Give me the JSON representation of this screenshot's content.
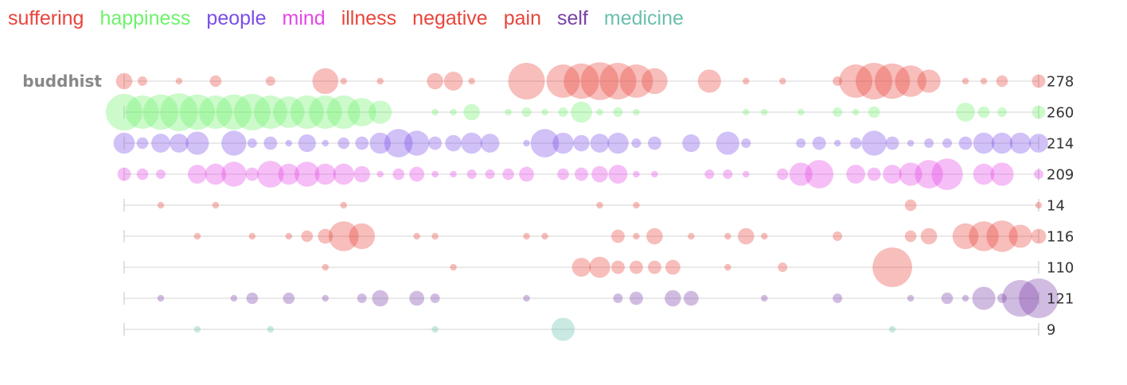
{
  "legend": [
    {
      "label": "suffering",
      "color": "#e8453c"
    },
    {
      "label": "happiness",
      "color": "#6ef26b"
    },
    {
      "label": "people",
      "color": "#7b4de8"
    },
    {
      "label": "mind",
      "color": "#e546e5"
    },
    {
      "label": "illness",
      "color": "#e8453c"
    },
    {
      "label": "negative",
      "color": "#e8453c"
    },
    {
      "label": "pain",
      "color": "#e8453c"
    },
    {
      "label": "self",
      "color": "#7a3fa8"
    },
    {
      "label": "medicine",
      "color": "#6bbfae"
    }
  ],
  "chart_data": {
    "type": "scatter",
    "grid": false,
    "legend_placement": "top-left",
    "row_label": "buddhist",
    "x": [
      0,
      1,
      2,
      3,
      4,
      5,
      6,
      7,
      8,
      9,
      10,
      11,
      12,
      13,
      14,
      15,
      16,
      17,
      18,
      19,
      20,
      21,
      22,
      23,
      24,
      25,
      26,
      27,
      28,
      29,
      30,
      31,
      32,
      33,
      34,
      35,
      36,
      37,
      38,
      39,
      40,
      41,
      42,
      43,
      44,
      45,
      46,
      47,
      48,
      49,
      50
    ],
    "series": [
      {
        "name": "suffering",
        "total": "278",
        "color": "#e8453c",
        "values": [
          6,
          2,
          0,
          1,
          0,
          3,
          0,
          0,
          2,
          0,
          0,
          15,
          1,
          0,
          1,
          0,
          0,
          6,
          8,
          1,
          0,
          0,
          30,
          0,
          25,
          28,
          32,
          30,
          25,
          15,
          0,
          0,
          12,
          0,
          1,
          0,
          1,
          0,
          0,
          2,
          25,
          30,
          28,
          22,
          12,
          0,
          1,
          1,
          3,
          0,
          4
        ]
      },
      {
        "name": "happiness",
        "total": "260",
        "color": "#6ef26b",
        "values": [
          30,
          25,
          28,
          32,
          28,
          25,
          28,
          30,
          25,
          22,
          25,
          25,
          25,
          18,
          12,
          0,
          0,
          1,
          1,
          6,
          0,
          1,
          2,
          1,
          2,
          10,
          1,
          2,
          1,
          0,
          0,
          0,
          0,
          0,
          1,
          1,
          0,
          1,
          0,
          2,
          1,
          3,
          0,
          0,
          0,
          0,
          8,
          3,
          2,
          0,
          4
        ]
      },
      {
        "name": "people",
        "total": "214",
        "color": "#7b4de8",
        "values": [
          10,
          3,
          8,
          8,
          12,
          0,
          14,
          2,
          4,
          1,
          7,
          1,
          3,
          4,
          10,
          18,
          14,
          4,
          6,
          10,
          8,
          0,
          1,
          18,
          10,
          6,
          8,
          10,
          2,
          4,
          0,
          7,
          0,
          12,
          2,
          0,
          0,
          2,
          4,
          1,
          3,
          14,
          4,
          1,
          2,
          2,
          4,
          10,
          10,
          10,
          8
        ]
      },
      {
        "name": "mind",
        "total": "209",
        "color": "#e546e5",
        "values": [
          4,
          3,
          2,
          0,
          8,
          10,
          14,
          4,
          16,
          10,
          14,
          10,
          10,
          6,
          1,
          3,
          5,
          1,
          1,
          2,
          2,
          3,
          5,
          0,
          3,
          4,
          6,
          8,
          1,
          1,
          0,
          0,
          2,
          2,
          1,
          0,
          3,
          12,
          18,
          0,
          8,
          4,
          8,
          12,
          18,
          22,
          0,
          10,
          12,
          0,
          2
        ]
      },
      {
        "name": "illness",
        "total": "14",
        "color": "#e8453c",
        "values": [
          0,
          0,
          1,
          0,
          0,
          1,
          0,
          0,
          0,
          0,
          0,
          0,
          1,
          0,
          0,
          0,
          0,
          0,
          0,
          0,
          0,
          0,
          0,
          0,
          0,
          0,
          1,
          0,
          1,
          0,
          0,
          0,
          0,
          0,
          0,
          0,
          0,
          0,
          0,
          0,
          0,
          0,
          0,
          3,
          0,
          0,
          0,
          0,
          0,
          0,
          1
        ]
      },
      {
        "name": "negative",
        "total": "116",
        "color": "#e8453c",
        "values": [
          0,
          0,
          0,
          0,
          1,
          0,
          0,
          1,
          0,
          1,
          3,
          5,
          20,
          15,
          0,
          0,
          1,
          1,
          0,
          0,
          0,
          0,
          1,
          1,
          0,
          0,
          0,
          4,
          1,
          6,
          0,
          1,
          0,
          1,
          6,
          1,
          0,
          0,
          0,
          2,
          0,
          0,
          0,
          3,
          6,
          0,
          15,
          20,
          22,
          12,
          5
        ]
      },
      {
        "name": "pain",
        "total": "110",
        "color": "#e8453c",
        "values": [
          0,
          0,
          0,
          0,
          0,
          0,
          0,
          0,
          0,
          0,
          0,
          1,
          0,
          0,
          0,
          0,
          0,
          0,
          1,
          0,
          0,
          0,
          0,
          0,
          0,
          8,
          10,
          4,
          4,
          4,
          5,
          0,
          0,
          1,
          0,
          0,
          2,
          0,
          0,
          0,
          0,
          0,
          35,
          0,
          0,
          0,
          0,
          0,
          0,
          0,
          0
        ]
      },
      {
        "name": "self",
        "total": "121",
        "color": "#7a3fa8",
        "values": [
          0,
          0,
          1,
          0,
          0,
          0,
          1,
          3,
          0,
          3,
          0,
          1,
          0,
          2,
          6,
          0,
          5,
          2,
          0,
          0,
          0,
          0,
          1,
          0,
          0,
          0,
          0,
          2,
          4,
          0,
          6,
          5,
          0,
          0,
          0,
          1,
          0,
          0,
          0,
          2,
          0,
          0,
          0,
          1,
          0,
          3,
          1,
          12,
          2,
          30,
          35
        ]
      },
      {
        "name": "medicine",
        "total": "9",
        "color": "#6bbfae",
        "values": [
          0,
          0,
          0,
          0,
          1,
          0,
          0,
          0,
          1,
          0,
          0,
          0,
          0,
          0,
          0,
          0,
          0,
          1,
          0,
          0,
          0,
          0,
          0,
          0,
          12,
          0,
          0,
          0,
          0,
          0,
          0,
          0,
          0,
          0,
          0,
          0,
          0,
          0,
          0,
          0,
          0,
          0,
          1,
          0,
          0,
          0,
          0,
          0,
          0,
          0,
          0
        ]
      }
    ]
  }
}
